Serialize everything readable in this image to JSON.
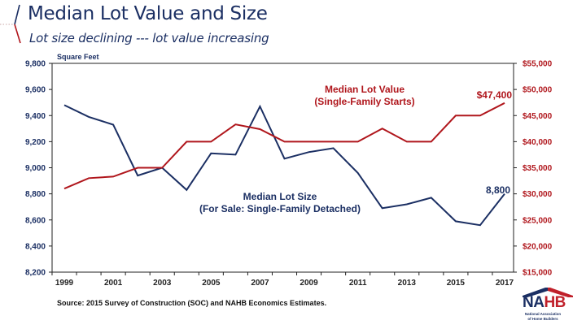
{
  "header": {
    "title": "Median Lot Value and Size",
    "subtitle": "Lot size declining --- lot value increasing"
  },
  "source": "Source: 2015 Survey of Construction (SOC) and NAHB Economics Estimates.",
  "logo": {
    "name_part1": "NA",
    "name_part2": "HB",
    "tagline_line1": "National Association",
    "tagline_line2": "of Home Builders"
  },
  "colors": {
    "navy": "#1b2f63",
    "red": "#b0161c"
  },
  "chart_data": {
    "type": "line",
    "title": "Median Lot Value and Size",
    "subtitle": "Lot size declining --- lot value increasing",
    "x": [
      1999,
      2000,
      2001,
      2002,
      2003,
      2004,
      2005,
      2006,
      2007,
      2008,
      2009,
      2010,
      2011,
      2012,
      2013,
      2014,
      2015,
      2016,
      2017
    ],
    "x_tick_labels": [
      "1999",
      "2001",
      "2003",
      "2005",
      "2007",
      "2009",
      "2011",
      "2013",
      "2015",
      "2017"
    ],
    "xlabel": "",
    "y_left": {
      "label": "Square Feet",
      "range": [
        8200,
        9800
      ],
      "ticks": [
        8200,
        8400,
        8600,
        8800,
        9000,
        9200,
        9400,
        9600,
        9800
      ],
      "tick_labels": [
        "8,200",
        "8,400",
        "8,600",
        "8,800",
        "9,000",
        "9,200",
        "9,400",
        "9,600",
        "9,800"
      ]
    },
    "y_right": {
      "label": "",
      "range": [
        15000,
        55000
      ],
      "ticks": [
        15000,
        20000,
        25000,
        30000,
        35000,
        40000,
        45000,
        50000,
        55000
      ],
      "tick_labels": [
        "$15,000",
        "$20,000",
        "$25,000",
        "$30,000",
        "$35,000",
        "$40,000",
        "$45,000",
        "$50,000",
        "$55,000"
      ]
    },
    "grid": false,
    "legend": "none (inline annotations)",
    "series": [
      {
        "name": "Median Lot Size (For Sale: Single-Family Detached)",
        "label_line1": "Median Lot Size",
        "label_line2": "(For Sale: Single-Family Detached)",
        "axis": "left",
        "color": "#1b2f63",
        "values": [
          9480,
          9390,
          9330,
          8940,
          9000,
          8830,
          9110,
          9100,
          9470,
          9070,
          9120,
          9150,
          8960,
          8690,
          8720,
          8770,
          8590,
          8560,
          8800
        ],
        "end_label": "8,800"
      },
      {
        "name": "Median Lot Value (Single-Family Starts)",
        "label_line1": "Median Lot Value",
        "label_line2": "(Single-Family Starts)",
        "axis": "right",
        "color": "#b0161c",
        "values": [
          31000,
          33000,
          33300,
          35000,
          35000,
          40000,
          40000,
          43300,
          42400,
          40000,
          40000,
          40000,
          40000,
          42500,
          40000,
          40000,
          45000,
          45000,
          47400
        ],
        "end_label": "$47,400"
      }
    ]
  }
}
